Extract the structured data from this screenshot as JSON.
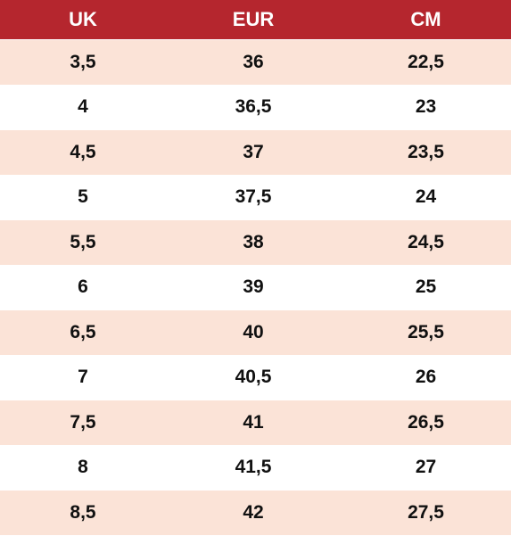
{
  "table": {
    "headers": [
      "UK",
      "EUR",
      "CM"
    ],
    "header_bg": "#b5262e",
    "row_odd_bg": "#fbe3d7",
    "row_even_bg": "#ffffff",
    "rows": [
      [
        "3,5",
        "36",
        "22,5"
      ],
      [
        "4",
        "36,5",
        "23"
      ],
      [
        "4,5",
        "37",
        "23,5"
      ],
      [
        "5",
        "37,5",
        "24"
      ],
      [
        "5,5",
        "38",
        "24,5"
      ],
      [
        "6",
        "39",
        "25"
      ],
      [
        "6,5",
        "40",
        "25,5"
      ],
      [
        "7",
        "40,5",
        "26"
      ],
      [
        "7,5",
        "41",
        "26,5"
      ],
      [
        "8",
        "41,5",
        "27"
      ],
      [
        "8,5",
        "42",
        "27,5"
      ]
    ]
  }
}
